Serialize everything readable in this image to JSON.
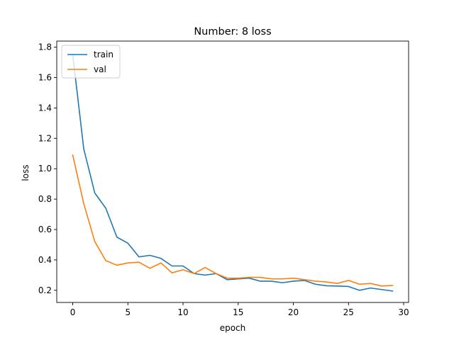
{
  "chart_data": {
    "type": "line",
    "title": "Number: 8 loss",
    "xlabel": "epoch",
    "ylabel": "loss",
    "xlim": [
      -1.45,
      30.45
    ],
    "ylim": [
      0.12,
      1.84
    ],
    "xticks": [
      0,
      5,
      10,
      15,
      20,
      25,
      30
    ],
    "yticks": [
      0.2,
      0.4,
      0.6,
      0.8,
      1.0,
      1.2,
      1.4,
      1.6,
      1.8
    ],
    "grid": false,
    "legend_position": "top-left",
    "x": [
      0,
      1,
      2,
      3,
      4,
      5,
      6,
      7,
      8,
      9,
      10,
      11,
      12,
      13,
      14,
      15,
      16,
      17,
      18,
      19,
      20,
      21,
      22,
      23,
      24,
      25,
      26,
      27,
      28,
      29
    ],
    "series": [
      {
        "name": "train",
        "color": "#1f77b4",
        "values": [
          1.75,
          1.13,
          0.84,
          0.74,
          0.55,
          0.51,
          0.42,
          0.43,
          0.41,
          0.36,
          0.36,
          0.31,
          0.3,
          0.31,
          0.27,
          0.275,
          0.28,
          0.26,
          0.26,
          0.25,
          0.26,
          0.265,
          0.24,
          0.23,
          0.228,
          0.225,
          0.2,
          0.215,
          0.205,
          0.195
        ]
      },
      {
        "name": "val",
        "color": "#ff7f0e",
        "values": [
          1.09,
          0.77,
          0.52,
          0.395,
          0.365,
          0.38,
          0.385,
          0.345,
          0.38,
          0.315,
          0.335,
          0.31,
          0.35,
          0.31,
          0.28,
          0.28,
          0.285,
          0.285,
          0.275,
          0.275,
          0.28,
          0.27,
          0.26,
          0.255,
          0.245,
          0.265,
          0.24,
          0.245,
          0.228,
          0.232
        ]
      }
    ]
  }
}
